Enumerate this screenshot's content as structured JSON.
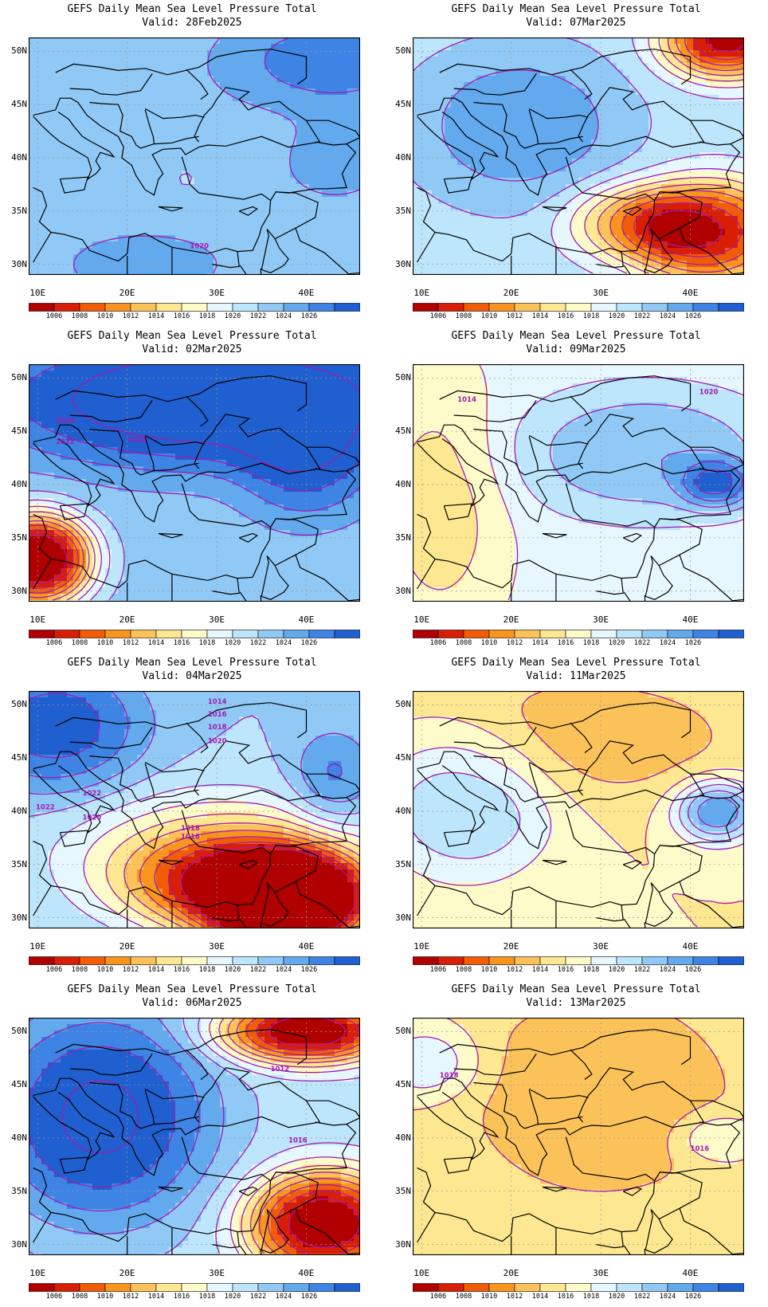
{
  "legend": {
    "levels": [
      "1006",
      "1008",
      "1010",
      "1012",
      "1014",
      "1016",
      "1018",
      "1020",
      "1022",
      "1024",
      "1026"
    ],
    "colors": [
      "#b00000",
      "#d81e05",
      "#f25c06",
      "#f7951e",
      "#fcc25a",
      "#fde791",
      "#fefbcb",
      "#e7f7ff",
      "#bde5fb",
      "#90c9f5",
      "#63a9ee",
      "#3d84e4",
      "#1f5fcf"
    ]
  },
  "axes": {
    "lat_labels": [
      "50N",
      "45N",
      "40N",
      "35N",
      "30N"
    ],
    "lon_labels": [
      "10E",
      "20E",
      "30E",
      "40E"
    ]
  },
  "contour_color": "#a21caf",
  "panels": [
    {
      "title": "GEFS Daily Mean Sea Level Pressure Total",
      "valid": "Valid: 28Feb2025",
      "base": 9,
      "blobs": [
        {
          "v": 10.4,
          "r": 1.7
        },
        {
          "v": 10.2,
          "r": 1.0
        },
        {
          "v": 8.0,
          "r": 0.3
        },
        {
          "v": 9.8,
          "r": 0.8
        },
        {
          "v": 8.6,
          "r": 1.1
        }
      ],
      "labels": [
        "1020"
      ]
    },
    {
      "title": "GEFS Daily Mean Sea Level Pressure Total",
      "valid": "Valid: 07Mar2025",
      "base": 8,
      "blobs": [
        {
          "v": 9.5,
          "r": 1.5
        },
        {
          "v": 1.5,
          "r": 1.0
        },
        {
          "v": 3.0,
          "r": 1.4
        },
        {
          "v": 5.0,
          "r": 1.0
        }
      ],
      "labels": []
    },
    {
      "title": "GEFS Daily Mean Sea Level Pressure Total",
      "valid": "Valid: 02Mar2025",
      "base": 9,
      "blobs": [
        {
          "v": 11.6,
          "r": 2.2
        },
        {
          "v": 1.5,
          "r": 1.3
        },
        {
          "v": 10.6,
          "r": 1.2
        }
      ],
      "labels": [
        "1024",
        "1022",
        "1024"
      ]
    },
    {
      "title": "GEFS Daily Mean Sea Level Pressure Total",
      "valid": "Valid: 09Mar2025",
      "base": 6.8,
      "blobs": [
        {
          "v": 10.2,
          "r": 0.8
        },
        {
          "v": 8.5,
          "r": 1.6
        },
        {
          "v": 5.5,
          "r": 1.3
        }
      ],
      "labels": [
        "1014",
        "1020"
      ]
    },
    {
      "title": "GEFS Daily Mean Sea Level Pressure Total",
      "valid": "Valid: 04Mar2025",
      "base": 8.5,
      "blobs": [
        {
          "v": 10.8,
          "r": 1.6
        },
        {
          "v": 2.0,
          "r": 1.3
        },
        {
          "v": 4.0,
          "r": 1.3
        },
        {
          "v": 6.0,
          "r": 1.1
        },
        {
          "v": 10.5,
          "r": 0.9
        }
      ],
      "labels": [
        "1014",
        "1016",
        "1018",
        "1020",
        "1022",
        "1022",
        "1020",
        "1018",
        "1016"
      ]
    },
    {
      "title": "GEFS Daily Mean Sea Level Pressure Total",
      "valid": "Valid: 11Mar2025",
      "base": 5.5,
      "blobs": [
        {
          "v": 7.5,
          "r": 1.6
        },
        {
          "v": 10.2,
          "r": 0.8
        },
        {
          "v": 4.0,
          "r": 1.0
        }
      ],
      "labels": []
    },
    {
      "title": "GEFS Daily Mean Sea Level Pressure Total",
      "valid": "Valid: 06Mar2025",
      "base": 8,
      "blobs": [
        {
          "v": 10.8,
          "r": 2.0
        },
        {
          "v": 1.5,
          "r": 1.2
        },
        {
          "v": 2.0,
          "r": 1.4
        }
      ],
      "labels": [
        "1012",
        "1016"
      ]
    },
    {
      "title": "GEFS Daily Mean Sea Level Pressure Total",
      "valid": "Valid: 13Mar2025",
      "base": 5.5,
      "blobs": [
        {
          "v": 7.5,
          "r": 0.8
        },
        {
          "v": 7.2,
          "r": 0.8
        },
        {
          "v": 4.2,
          "r": 1.3
        }
      ],
      "labels": [
        "1018",
        "1016"
      ]
    }
  ]
}
